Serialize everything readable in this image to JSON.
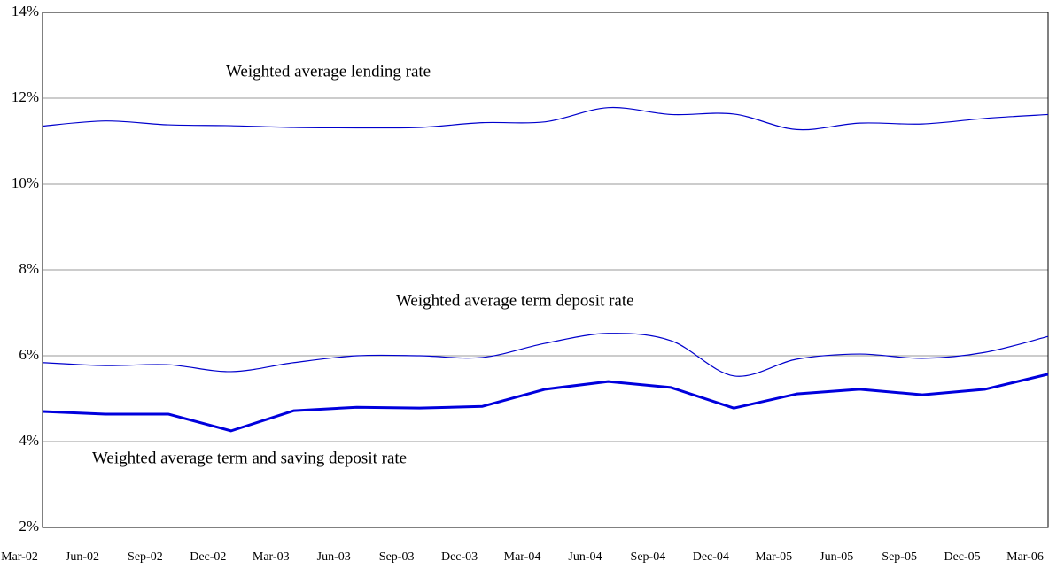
{
  "chart_data": {
    "type": "line",
    "categories": [
      "Mar-02",
      "Jun-02",
      "Sep-02",
      "Dec-02",
      "Mar-03",
      "Jun-03",
      "Sep-03",
      "Dec-03",
      "Mar-04",
      "Jun-04",
      "Sep-04",
      "Dec-04",
      "Mar-05",
      "Jun-05",
      "Sep-05",
      "Dec-05",
      "Mar-06"
    ],
    "series": [
      {
        "name": "Weighted average lending rate",
        "color": "#0000cc",
        "width": 1.2,
        "smooth": true,
        "values": [
          11.35,
          11.47,
          11.38,
          11.36,
          11.32,
          11.31,
          11.32,
          11.43,
          11.45,
          11.78,
          11.62,
          11.63,
          11.27,
          11.42,
          11.4,
          11.53,
          11.62
        ]
      },
      {
        "name": "Weighted average term deposit rate",
        "color": "#0000cc",
        "width": 1.2,
        "smooth": true,
        "values": [
          5.84,
          5.77,
          5.79,
          5.63,
          5.84,
          6.0,
          6.0,
          5.96,
          6.29,
          6.52,
          6.35,
          5.53,
          5.92,
          6.04,
          5.94,
          6.08,
          6.45
        ]
      },
      {
        "name": "Weighted average term and saving deposit rate",
        "color": "#0000dd",
        "width": 3,
        "smooth": false,
        "values": [
          4.7,
          4.64,
          4.64,
          4.25,
          4.72,
          4.8,
          4.78,
          4.82,
          5.22,
          5.4,
          5.26,
          4.78,
          5.11,
          5.22,
          5.09,
          5.22,
          5.57
        ]
      }
    ],
    "ylim": [
      2,
      14
    ],
    "yticks": [
      {
        "value": 2,
        "label": "2%"
      },
      {
        "value": 4,
        "label": "4%"
      },
      {
        "value": 6,
        "label": "6%"
      },
      {
        "value": 8,
        "label": "8%"
      },
      {
        "value": 10,
        "label": "10%"
      },
      {
        "value": 12,
        "label": "12%"
      },
      {
        "value": 14,
        "label": "14%"
      }
    ],
    "grid": true
  }
}
